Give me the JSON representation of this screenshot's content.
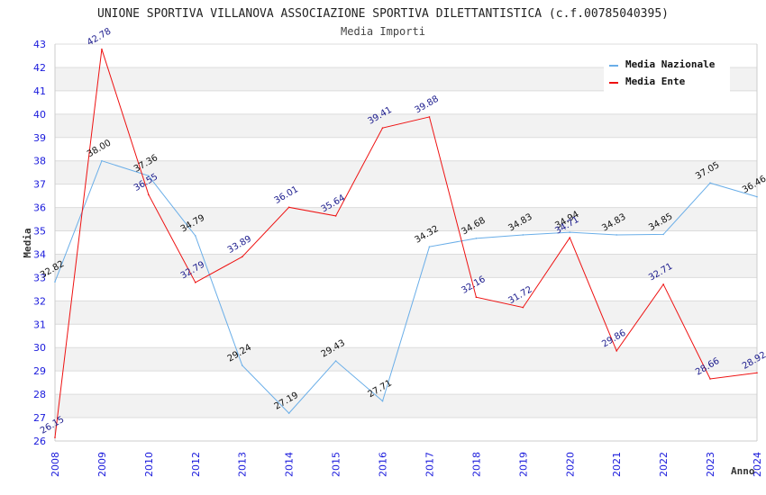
{
  "chart_data": {
    "type": "line",
    "title": "UNIONE SPORTIVA VILLANOVA ASSOCIAZIONE SPORTIVA DILETTANTISTICA (c.f.00785040395)",
    "subtitle": "Media Importi",
    "xlabel": "Anno",
    "ylabel": "Media",
    "ylim": [
      26,
      43
    ],
    "yticks": [
      "26",
      "27",
      "28",
      "29",
      "30",
      "31",
      "32",
      "33",
      "34",
      "35",
      "36",
      "37",
      "38",
      "39",
      "40",
      "41",
      "42",
      "43"
    ],
    "categories": [
      "2008",
      "2009",
      "2010",
      "2012",
      "2013",
      "2014",
      "2015",
      "2016",
      "2017",
      "2018",
      "2019",
      "2020",
      "2021",
      "2022",
      "2023",
      "2024"
    ],
    "grid": true,
    "legend_position": "top-right",
    "series": [
      {
        "name": "Media Nazionale",
        "color": "#6aaee8",
        "values": [
          32.82,
          38.0,
          37.36,
          34.79,
          29.24,
          27.19,
          29.43,
          27.71,
          34.32,
          34.68,
          34.83,
          34.94,
          34.83,
          34.85,
          37.05,
          36.46
        ],
        "labels": [
          "32.82",
          "38.00",
          "37.36",
          "34.79",
          "29.24",
          "27.19",
          "29.43",
          "27.71",
          "34.32",
          "34.68",
          "34.83",
          "34.94",
          "34.83",
          "34.85",
          "37.05",
          "36.46"
        ]
      },
      {
        "name": "Media Ente",
        "color": "#ee1111",
        "values": [
          26.15,
          42.78,
          36.55,
          32.79,
          33.89,
          36.01,
          35.64,
          39.41,
          39.88,
          32.16,
          31.72,
          34.71,
          29.86,
          32.71,
          28.66,
          28.92
        ],
        "labels": [
          "26.15",
          "42.78",
          "36.55",
          "32.79",
          "33.89",
          "36.01",
          "35.64",
          "39.41",
          "39.88",
          "32.16",
          "31.72",
          "34.71",
          "29.86",
          "32.71",
          "28.66",
          "28.92"
        ]
      }
    ]
  }
}
